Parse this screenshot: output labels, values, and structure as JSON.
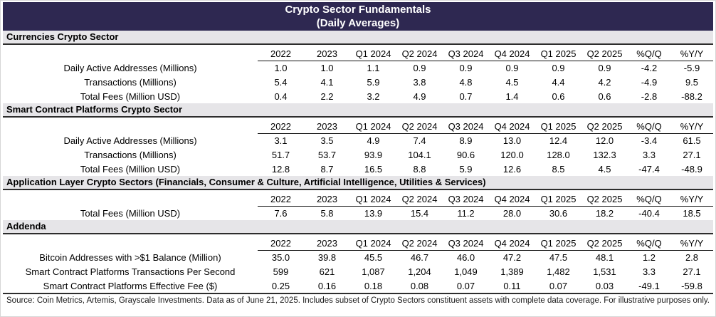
{
  "title": {
    "line1": "Crypto Sector Fundamentals",
    "line2": "(Daily Averages)"
  },
  "chart_data": {
    "type": "table",
    "title": "Crypto Sector Fundamentals",
    "subtitle": "(Daily Averages)",
    "columns": [
      "2022",
      "2023",
      "Q1 2024",
      "Q2 2024",
      "Q3 2024",
      "Q4 2024",
      "Q1 2025",
      "Q2 2025",
      "%Q/Q",
      "%Y/Y"
    ],
    "sections": [
      {
        "name": "Currencies Crypto Sector",
        "rows": [
          {
            "label": "Daily Active Addresses (Millions)",
            "values": [
              "1.0",
              "1.0",
              "1.1",
              "0.9",
              "0.9",
              "0.9",
              "0.9",
              "0.9",
              "-4.2",
              "-5.9"
            ]
          },
          {
            "label": "Transactions (Millions)",
            "values": [
              "5.4",
              "4.1",
              "5.9",
              "3.8",
              "4.8",
              "4.5",
              "4.4",
              "4.2",
              "-4.9",
              "9.5"
            ]
          },
          {
            "label": "Total Fees (Million USD)",
            "values": [
              "0.4",
              "2.2",
              "3.2",
              "4.9",
              "0.7",
              "1.4",
              "0.6",
              "0.6",
              "-2.8",
              "-88.2"
            ]
          }
        ]
      },
      {
        "name": "Smart Contract Platforms Crypto Sector",
        "rows": [
          {
            "label": "Daily Active Addresses (Millions)",
            "values": [
              "3.1",
              "3.5",
              "4.9",
              "7.4",
              "8.9",
              "13.0",
              "12.4",
              "12.0",
              "-3.4",
              "61.5"
            ]
          },
          {
            "label": "Transactions (Millions)",
            "values": [
              "51.7",
              "53.7",
              "93.9",
              "104.1",
              "90.6",
              "120.0",
              "128.0",
              "132.3",
              "3.3",
              "27.1"
            ]
          },
          {
            "label": "Total Fees (Million USD)",
            "values": [
              "12.8",
              "8.7",
              "16.5",
              "8.8",
              "5.9",
              "12.6",
              "8.5",
              "4.5",
              "-47.4",
              "-48.9"
            ]
          }
        ]
      },
      {
        "name": "Application Layer Crypto Sectors (Financials, Consumer & Culture, Artificial Intelligence, Utilities & Services)",
        "rows": [
          {
            "label": "Total Fees (Million USD)",
            "values": [
              "7.6",
              "5.8",
              "13.9",
              "15.4",
              "11.2",
              "28.0",
              "30.6",
              "18.2",
              "-40.4",
              "18.5"
            ]
          }
        ]
      },
      {
        "name": "Addenda",
        "rows": [
          {
            "label": "Bitcoin Addresses with >$1 Balance (Million)",
            "values": [
              "35.0",
              "39.8",
              "45.5",
              "46.7",
              "46.0",
              "47.2",
              "47.5",
              "48.1",
              "1.2",
              "2.8"
            ]
          },
          {
            "label": "Smart Contract Platforms Transactions Per Second",
            "values": [
              "599",
              "621",
              "1,087",
              "1,204",
              "1,049",
              "1,389",
              "1,482",
              "1,531",
              "3.3",
              "27.1"
            ]
          },
          {
            "label": "Smart Contract Platforms Effective Fee ($)",
            "values": [
              "0.25",
              "0.16",
              "0.18",
              "0.08",
              "0.07",
              "0.11",
              "0.07",
              "0.03",
              "-49.1",
              "-59.8"
            ]
          }
        ]
      }
    ]
  },
  "footer": "Source: Coin Metrics, Artemis, Grayscale Investments. Data as of June 21, 2025. Includes subset of Crypto Sectors constituent assets with complete data coverage. For illustrative purposes only.",
  "colors": {
    "title_bg": "#2e2851",
    "title_text": "#ffffff",
    "section_bg": "#e6e5e8",
    "rule_dark": "#2d2d2d",
    "header_underline": "#111111"
  }
}
